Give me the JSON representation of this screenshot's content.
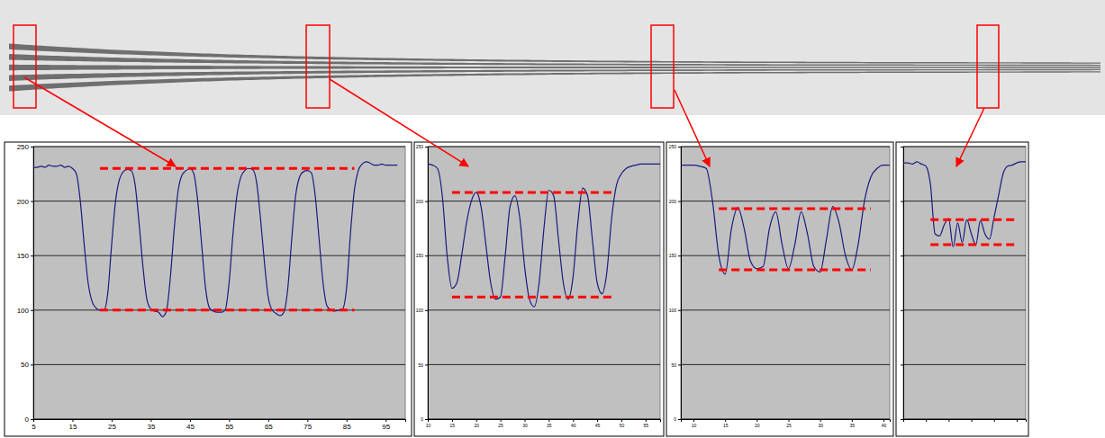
{
  "chart_data": [
    {
      "type": "line",
      "x": [
        5,
        6,
        7,
        8,
        9,
        10,
        11,
        12,
        13,
        14,
        15,
        16,
        17,
        18,
        19,
        20,
        21,
        22,
        23,
        24,
        25,
        26,
        27,
        28,
        29,
        30,
        31,
        32,
        33,
        34,
        35,
        36,
        37,
        38,
        39,
        40,
        41,
        42,
        43,
        44,
        45,
        46,
        47,
        48,
        49,
        50,
        51,
        52,
        53,
        54,
        55,
        56,
        57,
        58,
        59,
        60,
        61,
        62,
        63,
        64,
        65,
        66,
        67,
        68,
        69,
        70,
        71,
        72,
        73,
        74,
        75,
        76,
        77,
        78,
        79,
        80,
        81,
        82,
        83,
        84,
        85,
        86,
        87,
        88,
        89,
        90,
        91,
        92,
        93,
        94,
        95,
        96,
        97,
        98
      ],
      "series": [
        {
          "color": "#1a1a80",
          "values": [
            231,
            231,
            232,
            231,
            233,
            232,
            232,
            233,
            231,
            232,
            230,
            225,
            200,
            160,
            125,
            108,
            102,
            100,
            100,
            115,
            160,
            200,
            220,
            227,
            229,
            228,
            215,
            180,
            140,
            110,
            101,
            99,
            98,
            94,
            99,
            130,
            175,
            210,
            224,
            228,
            230,
            225,
            200,
            160,
            120,
            102,
            99,
            98,
            98,
            100,
            125,
            170,
            205,
            222,
            228,
            230,
            229,
            218,
            185,
            145,
            112,
            100,
            97,
            95,
            98,
            120,
            165,
            205,
            222,
            227,
            228,
            226,
            205,
            165,
            125,
            104,
            100,
            99,
            100,
            101,
            120,
            170,
            210,
            228,
            234,
            236,
            235,
            233,
            233,
            234,
            233,
            233,
            233,
            233
          ]
        }
      ],
      "xlim": [
        5,
        100
      ],
      "xticks": [
        5,
        15,
        25,
        35,
        45,
        55,
        65,
        75,
        85,
        95
      ],
      "ylim": [
        0,
        250
      ],
      "yticks": [
        0,
        50,
        100,
        150,
        200,
        250
      ],
      "grid": true,
      "reference_lines": [
        {
          "value": 230,
          "x": [
            22,
            87
          ],
          "color": "#ff0000",
          "line_style": "dashed"
        },
        {
          "value": 100,
          "x": [
            22,
            87
          ],
          "color": "#ff0000",
          "line_style": "dashed"
        }
      ]
    },
    {
      "type": "line",
      "x": [
        10,
        11,
        12,
        13,
        14,
        15,
        16,
        17,
        18,
        19,
        20,
        21,
        22,
        23,
        24,
        25,
        26,
        27,
        28,
        29,
        30,
        31,
        32,
        33,
        34,
        35,
        36,
        37,
        38,
        39,
        40,
        41,
        42,
        43,
        44,
        45,
        46,
        47,
        48,
        49,
        50,
        51,
        52,
        53,
        54,
        55,
        56,
        57,
        58
      ],
      "series": [
        {
          "color": "#1a1a80",
          "values": [
            234,
            233,
            230,
            205,
            150,
            120,
            125,
            150,
            180,
            200,
            208,
            195,
            160,
            125,
            110,
            112,
            150,
            195,
            205,
            185,
            140,
            110,
            103,
            125,
            175,
            210,
            205,
            165,
            125,
            110,
            130,
            180,
            212,
            205,
            165,
            125,
            115,
            135,
            185,
            215,
            225,
            230,
            232,
            233,
            234,
            234,
            234,
            234,
            234
          ]
        }
      ],
      "xlim": [
        10,
        58
      ],
      "xticks": [
        10,
        15,
        20,
        25,
        30,
        35,
        40,
        45,
        50,
        55
      ],
      "ylim": [
        0,
        250
      ],
      "yticks": [
        0,
        50,
        100,
        150,
        200,
        250
      ],
      "grid": true,
      "reference_lines": [
        {
          "value": 208,
          "x": [
            15,
            48
          ],
          "color": "#ff0000",
          "line_style": "dashed"
        },
        {
          "value": 112,
          "x": [
            15,
            48
          ],
          "color": "#ff0000",
          "line_style": "dashed"
        }
      ]
    },
    {
      "type": "line",
      "x": [
        8,
        9,
        10,
        11,
        12,
        13,
        14,
        15,
        16,
        17,
        18,
        19,
        20,
        21,
        22,
        23,
        24,
        25,
        26,
        27,
        28,
        29,
        30,
        31,
        32,
        33,
        34,
        35,
        36,
        37,
        38,
        39,
        40,
        41
      ],
      "series": [
        {
          "color": "#1a1a80",
          "values": [
            233,
            233,
            233,
            232,
            230,
            200,
            150,
            133,
            175,
            194,
            175,
            145,
            138,
            140,
            175,
            190,
            160,
            138,
            160,
            190,
            170,
            140,
            135,
            165,
            195,
            180,
            150,
            137,
            160,
            200,
            222,
            230,
            233,
            233
          ]
        }
      ],
      "xlim": [
        8,
        41
      ],
      "xticks": [
        10,
        15,
        20,
        25,
        30,
        35,
        40
      ],
      "ylim": [
        0,
        250
      ],
      "yticks": [
        0,
        50,
        100,
        150,
        200,
        250
      ],
      "grid": true,
      "reference_lines": [
        {
          "value": 193,
          "x": [
            14,
            38
          ],
          "color": "#ff0000",
          "line_style": "dashed"
        },
        {
          "value": 137,
          "x": [
            14,
            38
          ],
          "color": "#ff0000",
          "line_style": "dashed"
        }
      ]
    },
    {
      "type": "line",
      "x": [
        0,
        1,
        2,
        3,
        4,
        5,
        6,
        7,
        8,
        9,
        10,
        11,
        12,
        13,
        14,
        15,
        16,
        17,
        18,
        19,
        20,
        21,
        22,
        23,
        24,
        25,
        26,
        27
      ],
      "series": [
        {
          "color": "#1a1a80",
          "values": [
            235,
            235,
            234,
            236,
            234,
            232,
            215,
            170,
            168,
            178,
            184,
            158,
            180,
            162,
            183,
            170,
            160,
            182,
            170,
            165,
            185,
            205,
            225,
            232,
            233,
            235,
            236,
            236
          ]
        }
      ],
      "xlim": [
        0,
        27
      ],
      "xticks": [
        0,
        5,
        10,
        15,
        20,
        25
      ],
      "ylim": [
        0,
        250
      ],
      "yticks": [
        0,
        50,
        100,
        150,
        200,
        250
      ],
      "grid": true,
      "tick_labels": false,
      "reference_lines": [
        {
          "value": 183,
          "x": [
            6,
            25
          ],
          "color": "#ff0000",
          "line_style": "dashed"
        },
        {
          "value": 160,
          "x": [
            6,
            25
          ],
          "color": "#ff0000",
          "line_style": "dashed"
        }
      ]
    }
  ]
}
